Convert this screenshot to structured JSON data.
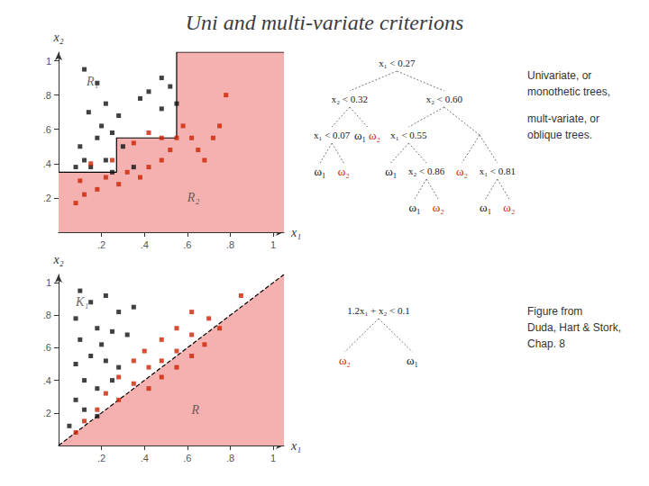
{
  "chart_data": [
    {
      "type": "scatter",
      "title": "Uni and multi-variate criterions",
      "xlabel": "x₁",
      "ylabel": "x₂",
      "xlim": [
        0,
        1.05
      ],
      "ylim": [
        0,
        1.05
      ],
      "xticks": [
        {
          "value": 0.2,
          "label": ".2"
        },
        {
          "value": 0.4,
          "label": ".4"
        },
        {
          "value": 0.6,
          "label": ".6"
        },
        {
          "value": 0.8,
          "label": ".8"
        },
        1
      ],
      "yticks": [
        {
          "value": 0.2,
          "label": ".2"
        },
        {
          "value": 0.4,
          "label": ".4"
        },
        {
          "value": 0.6,
          "label": ".6"
        },
        {
          "value": 0.8,
          "label": ".8"
        },
        1
      ],
      "grid": false,
      "region": {
        "color": "#f5b0b0",
        "points": [
          [
            0.0,
            0.0
          ],
          [
            1.05,
            0.0
          ],
          [
            1.05,
            1.05
          ],
          [
            0.55,
            1.05
          ],
          [
            0.55,
            0.55
          ],
          [
            0.27,
            0.55
          ],
          [
            0.27,
            0.35
          ],
          [
            0.0,
            0.35
          ]
        ]
      },
      "boundary": {
        "x": [
          0.0,
          0.27,
          0.27,
          0.55,
          0.55,
          1.05
        ],
        "y": [
          0.35,
          0.35,
          0.55,
          0.55,
          1.05,
          1.05
        ],
        "line_style": "solid"
      },
      "series": [
        {
          "color": "#111111",
          "marker": "square",
          "values": [
            [
              0.12,
              0.95
            ],
            [
              0.18,
              0.87
            ],
            [
              0.22,
              0.75
            ],
            [
              0.14,
              0.7
            ],
            [
              0.2,
              0.62
            ],
            [
              0.28,
              0.68
            ],
            [
              0.25,
              0.58
            ],
            [
              0.18,
              0.55
            ],
            [
              0.1,
              0.5
            ],
            [
              0.3,
              0.5
            ],
            [
              0.12,
              0.42
            ],
            [
              0.22,
              0.42
            ],
            [
              0.08,
              0.38
            ],
            [
              0.15,
              0.38
            ],
            [
              0.25,
              0.35
            ],
            [
              0.35,
              0.38
            ],
            [
              0.38,
              0.78
            ],
            [
              0.42,
              0.82
            ],
            [
              0.48,
              0.9
            ],
            [
              0.52,
              0.85
            ],
            [
              0.55,
              0.75
            ],
            [
              0.48,
              0.72
            ]
          ]
        },
        {
          "color": "#cc2200",
          "marker": "square",
          "values": [
            [
              0.08,
              0.17
            ],
            [
              0.12,
              0.22
            ],
            [
              0.18,
              0.25
            ],
            [
              0.1,
              0.3
            ],
            [
              0.22,
              0.32
            ],
            [
              0.28,
              0.28
            ],
            [
              0.15,
              0.4
            ],
            [
              0.25,
              0.42
            ],
            [
              0.32,
              0.35
            ],
            [
              0.38,
              0.32
            ],
            [
              0.42,
              0.38
            ],
            [
              0.48,
              0.42
            ],
            [
              0.52,
              0.48
            ],
            [
              0.55,
              0.55
            ],
            [
              0.58,
              0.62
            ],
            [
              0.62,
              0.55
            ],
            [
              0.65,
              0.48
            ],
            [
              0.68,
              0.42
            ],
            [
              0.72,
              0.55
            ],
            [
              0.75,
              0.62
            ],
            [
              0.78,
              0.8
            ],
            [
              0.35,
              0.52
            ],
            [
              0.42,
              0.58
            ],
            [
              0.48,
              0.55
            ]
          ]
        }
      ],
      "annotations": [
        {
          "text": "R₁",
          "x": 0.13,
          "y": 0.88
        },
        {
          "text": "R₂",
          "x": 0.6,
          "y": 0.2
        }
      ],
      "tree": {
        "label": "x₁ < 0.27",
        "children": [
          {
            "label": "x₂ < 0.32",
            "children": [
              {
                "label": "x₁ < 0.07",
                "children": [
                  {
                    "label": "ω₁",
                    "color": "#111111"
                  },
                  {
                    "label": "ω₂",
                    "color": "#cc2200"
                  }
                ]
              },
              {
                "label": [
                  "ω₁",
                  "ω₂"
                ],
                "color": [
                  "#111111",
                  "#cc2200"
                ]
              }
            ]
          },
          {
            "label": "x₂ < 0.60",
            "children": [
              {
                "label": "x₁ < 0.55",
                "children": [
                  {
                    "label": "ω₁",
                    "color": "#111111"
                  },
                  {
                    "label": "x₂ < 0.86",
                    "children": [
                      {
                        "label": "ω₁",
                        "color": "#111111"
                      },
                      {
                        "label": "ω₂",
                        "color": "#cc2200"
                      }
                    ]
                  }
                ]
              },
              {
                "children": [
                  {
                    "label": "ω₂",
                    "color": "#cc2200"
                  },
                  {
                    "label": "x₁ < 0.81",
                    "children": [
                      {
                        "label": "ω₁",
                        "color": "#111111"
                      },
                      {
                        "label": "ω₂",
                        "color": "#cc2200"
                      }
                    ]
                  }
                ]
              }
            ]
          }
        ]
      },
      "side_text": [
        [
          "Univariate, or",
          "monothetic trees,"
        ],
        [
          "mult-variate, or",
          "oblique trees."
        ]
      ]
    },
    {
      "type": "scatter",
      "xlabel": "x₁",
      "ylabel": "x₂",
      "xlim": [
        0,
        1.05
      ],
      "ylim": [
        0,
        1.05
      ],
      "xticks": [
        {
          "value": 0.2,
          "label": ".2"
        },
        {
          "value": 0.4,
          "label": ".4"
        },
        {
          "value": 0.6,
          "label": ".6"
        },
        {
          "value": 0.8,
          "label": ".8"
        },
        1
      ],
      "yticks": [
        {
          "value": 0.2,
          "label": ".2"
        },
        {
          "value": 0.4,
          "label": ".4"
        },
        {
          "value": 0.6,
          "label": ".6"
        },
        {
          "value": 0.8,
          "label": ".8"
        },
        1
      ],
      "grid": false,
      "region": {
        "color": "#f5b0b0",
        "points": [
          [
            0.0,
            0.0
          ],
          [
            1.05,
            0.0
          ],
          [
            1.05,
            1.05
          ]
        ]
      },
      "boundary": {
        "x": [
          0.0,
          1.05
        ],
        "y": [
          0.0,
          1.05
        ],
        "line_style": "dashed"
      },
      "series": [
        {
          "color": "#111111",
          "marker": "square",
          "values": [
            [
              0.1,
              0.95
            ],
            [
              0.15,
              0.88
            ],
            [
              0.22,
              0.92
            ],
            [
              0.28,
              0.82
            ],
            [
              0.35,
              0.85
            ],
            [
              0.08,
              0.78
            ],
            [
              0.18,
              0.72
            ],
            [
              0.25,
              0.7
            ],
            [
              0.32,
              0.68
            ],
            [
              0.1,
              0.65
            ],
            [
              0.2,
              0.62
            ],
            [
              0.15,
              0.55
            ],
            [
              0.08,
              0.5
            ],
            [
              0.22,
              0.52
            ],
            [
              0.28,
              0.48
            ],
            [
              0.12,
              0.4
            ],
            [
              0.18,
              0.35
            ],
            [
              0.25,
              0.4
            ],
            [
              0.08,
              0.28
            ],
            [
              0.12,
              0.22
            ],
            [
              0.18,
              0.18
            ],
            [
              0.05,
              0.12
            ]
          ]
        },
        {
          "color": "#cc2200",
          "marker": "square",
          "values": [
            [
              0.85,
              0.92
            ],
            [
              0.62,
              0.82
            ],
            [
              0.7,
              0.78
            ],
            [
              0.75,
              0.72
            ],
            [
              0.55,
              0.72
            ],
            [
              0.62,
              0.68
            ],
            [
              0.68,
              0.62
            ],
            [
              0.48,
              0.65
            ],
            [
              0.55,
              0.58
            ],
            [
              0.62,
              0.55
            ],
            [
              0.4,
              0.58
            ],
            [
              0.48,
              0.52
            ],
            [
              0.55,
              0.48
            ],
            [
              0.35,
              0.52
            ],
            [
              0.42,
              0.48
            ],
            [
              0.48,
              0.42
            ],
            [
              0.28,
              0.42
            ],
            [
              0.35,
              0.38
            ],
            [
              0.42,
              0.35
            ],
            [
              0.22,
              0.32
            ],
            [
              0.28,
              0.28
            ],
            [
              0.18,
              0.22
            ],
            [
              0.12,
              0.15
            ],
            [
              0.08,
              0.08
            ]
          ]
        }
      ],
      "annotations": [
        {
          "text": "K₁",
          "x": 0.08,
          "y": 0.88
        },
        {
          "text": "R",
          "x": 0.62,
          "y": 0.22
        }
      ],
      "tree": {
        "label": "1.2x₁ + x₂ < 0.1",
        "children": [
          {
            "label": "ω₂",
            "color": "#cc2200"
          },
          {
            "label": "ω₁",
            "color": "#111111"
          }
        ]
      },
      "side_text": [
        [
          "Figure from",
          "Duda, Hart & Stork,",
          "Chap. 8"
        ]
      ]
    }
  ]
}
